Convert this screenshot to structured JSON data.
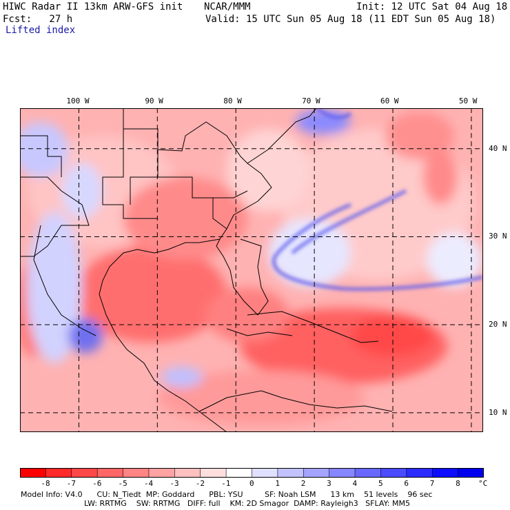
{
  "header": {
    "title": "HIWC Radar II 13km ARW-GFS init",
    "agency": "NCAR/MMM",
    "init": "Init: 12 UTC Sat 04 Aug 18",
    "forecast": "Fcst:   27 h",
    "valid": "Valid: 15 UTC Sun 05 Aug 18 (11 EDT Sun 05 Aug 18)",
    "field": "Lifted index"
  },
  "map": {
    "lon_labels": [
      "100 W",
      "90 W",
      "80 W",
      "70 W",
      "60 W",
      "50 W"
    ],
    "lat_labels": [
      "40 N",
      "30 N",
      "20 N",
      "10 N"
    ],
    "lon_values": [
      -100,
      -90,
      -80,
      -70,
      -60,
      -50
    ],
    "lat_values": [
      40,
      30,
      20,
      10
    ],
    "extent": {
      "lon_min": -107.5,
      "lon_max": -48.5,
      "lat_min": 7.8,
      "lat_max": 44.6
    }
  },
  "colorbar": {
    "labels": [
      "-8",
      "-7",
      "-6",
      "-5",
      "-4",
      "-3",
      "-2",
      "-1",
      "0",
      "1",
      "2",
      "3",
      "4",
      "5",
      "6",
      "7",
      "8"
    ],
    "unit": "°C",
    "colors": [
      "#ff0000",
      "#ff2a2a",
      "#ff4848",
      "#ff6666",
      "#ff8484",
      "#ffa2a2",
      "#ffc0c0",
      "#ffdede",
      "#ffffff",
      "#e0e0ff",
      "#c2c2ff",
      "#a4a4ff",
      "#8686ff",
      "#6868ff",
      "#4a4aff",
      "#2c2cff",
      "#0e0eff",
      "#0000ee"
    ]
  },
  "footer": {
    "line1": "Model Info: V4.0      CU: N_Tiedt  MP: Goddard      PBL: YSU         SF: Noah LSM      13 km    51 levels    96 sec",
    "line2": "LW: RRTMG    SW: RRTMG   DIFF: full    KM: 2D Smagor  DAMP: Rayleigh3   SFLAY: MM5"
  }
}
